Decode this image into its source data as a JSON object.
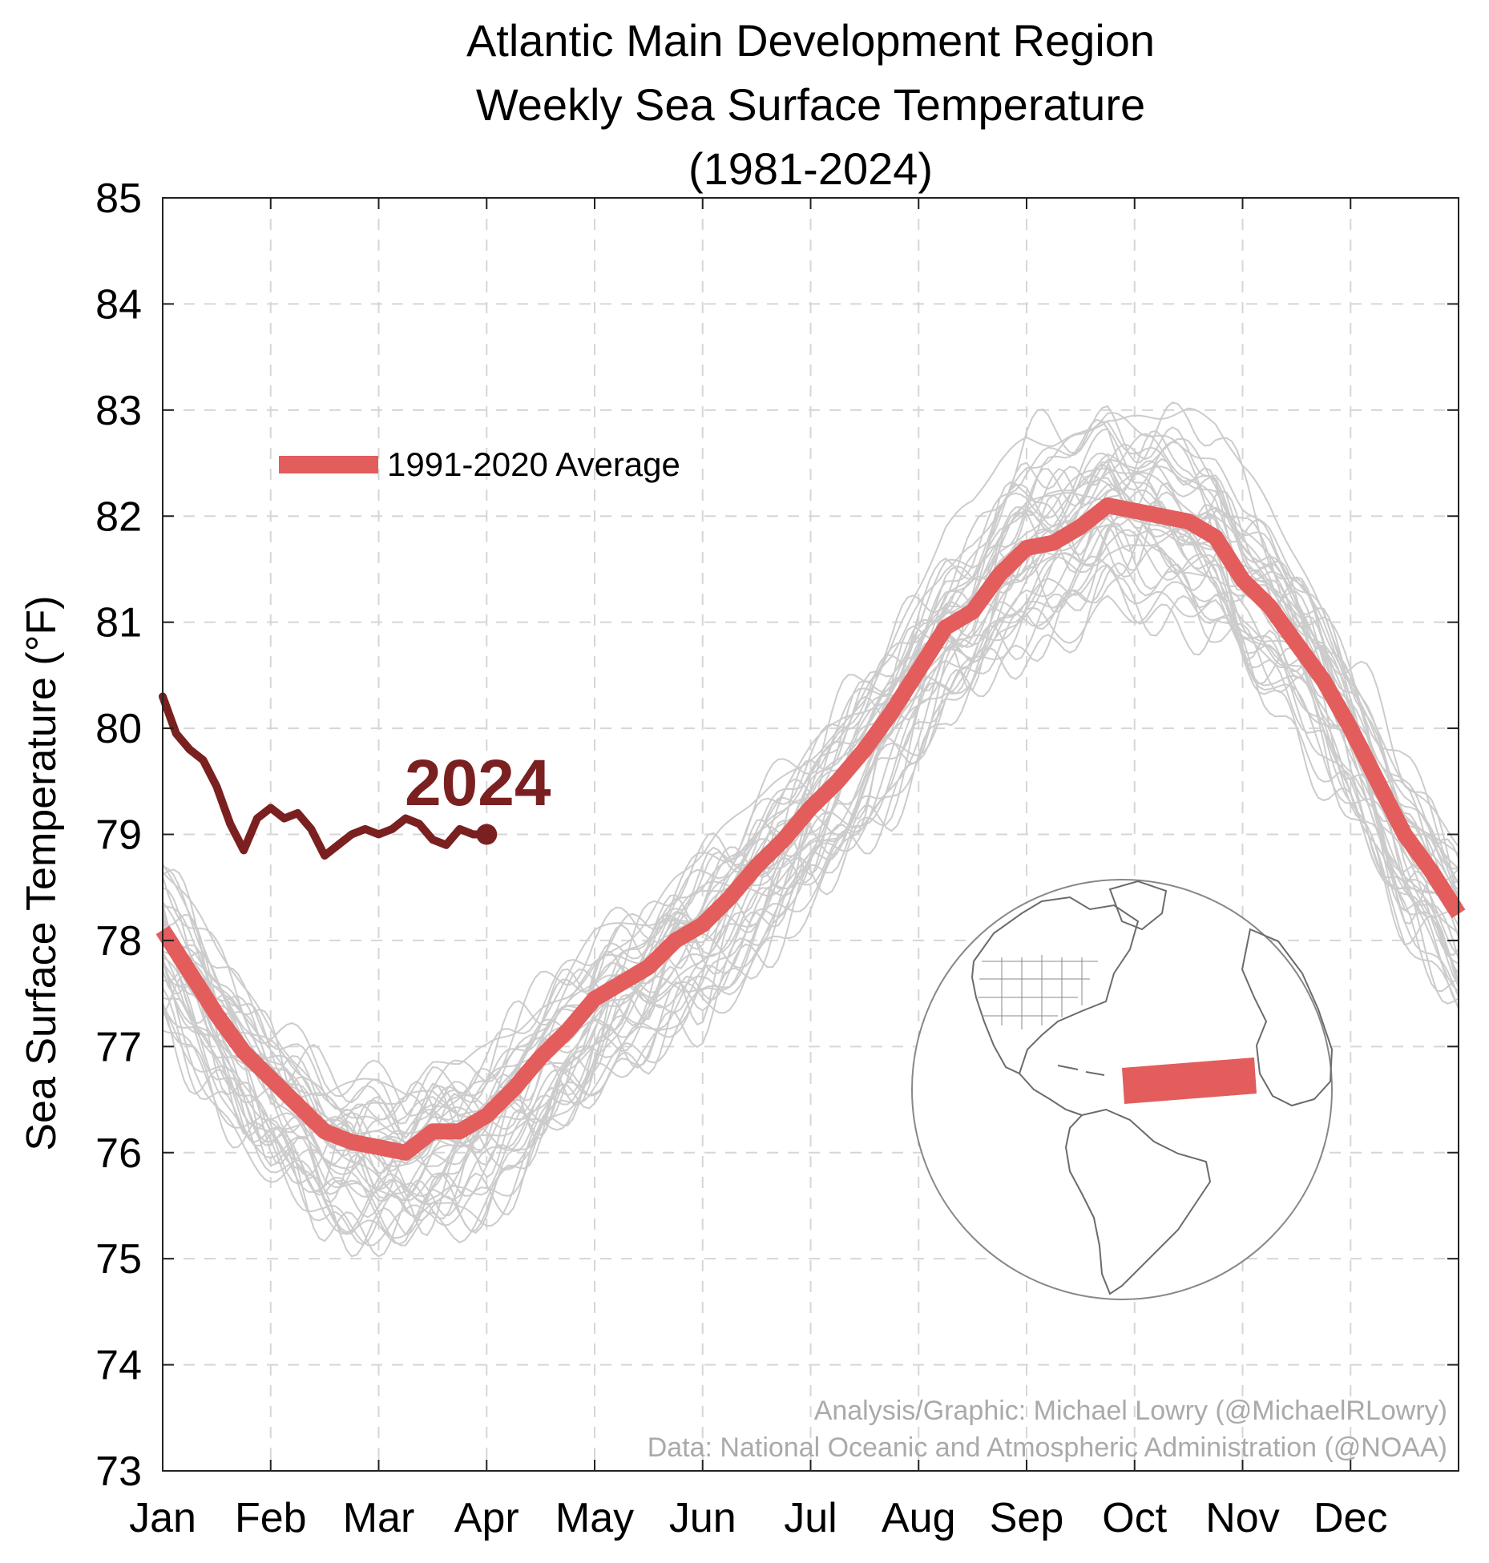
{
  "chart_data": {
    "type": "line",
    "title_lines": [
      "Atlantic Main Development Region",
      "Weekly Sea Surface Temperature",
      "(1981-2024)"
    ],
    "ylabel": "Sea Surface Temperature (°F)",
    "xlabel": "",
    "ylim": [
      73,
      85
    ],
    "yticks": [
      73,
      74,
      75,
      76,
      77,
      78,
      79,
      80,
      81,
      82,
      83,
      84,
      85
    ],
    "xlim": [
      0,
      12
    ],
    "month_labels": [
      "Jan",
      "Feb",
      "Mar",
      "Apr",
      "May",
      "Jun",
      "Jul",
      "Aug",
      "Sep",
      "Oct",
      "Nov",
      "Dec"
    ],
    "grid": true,
    "legend": {
      "position": "upper-left",
      "entries": [
        "1991-2020 Average"
      ]
    },
    "annotations": {
      "series_label_2024": "2024",
      "credit_1": "Analysis/Graphic: Michael Lowry (@MichaelRLowry)",
      "credit_2": "Data: National Oceanic and Atmospheric Administration (@NOAA)"
    },
    "series": [
      {
        "name": "1991-2020 Average",
        "color": "#e35d5d",
        "x": [
          0.0,
          0.25,
          0.5,
          0.75,
          1.0,
          1.25,
          1.5,
          1.75,
          2.0,
          2.25,
          2.5,
          2.75,
          3.0,
          3.25,
          3.5,
          3.75,
          4.0,
          4.25,
          4.5,
          4.75,
          5.0,
          5.25,
          5.5,
          5.75,
          6.0,
          6.25,
          6.5,
          6.75,
          7.0,
          7.25,
          7.5,
          7.75,
          8.0,
          8.25,
          8.5,
          8.75,
          9.0,
          9.25,
          9.5,
          9.75,
          10.0,
          10.25,
          10.5,
          10.75,
          11.0,
          11.25,
          11.5,
          11.75,
          12.0
        ],
        "values": [
          78.1,
          77.7,
          77.3,
          76.95,
          76.7,
          76.45,
          76.2,
          76.1,
          76.05,
          76.0,
          76.2,
          76.2,
          76.35,
          76.6,
          76.9,
          77.15,
          77.45,
          77.6,
          77.75,
          78.0,
          78.15,
          78.4,
          78.7,
          78.95,
          79.25,
          79.5,
          79.8,
          80.15,
          80.55,
          80.95,
          81.1,
          81.45,
          81.7,
          81.75,
          81.9,
          82.1,
          82.05,
          82.0,
          81.95,
          81.8,
          81.4,
          81.15,
          80.8,
          80.45,
          80.0,
          79.5,
          79.0,
          78.65,
          78.25
        ]
      },
      {
        "name": "2024",
        "color": "#7a2020",
        "x": [
          0.0,
          0.125,
          0.25,
          0.375,
          0.5,
          0.625,
          0.75,
          0.875,
          1.0,
          1.125,
          1.25,
          1.375,
          1.5,
          1.625,
          1.75,
          1.875,
          2.0,
          2.125,
          2.25,
          2.375,
          2.5,
          2.625,
          2.75,
          2.875,
          3.0
        ],
        "values": [
          80.3,
          79.95,
          79.8,
          79.7,
          79.45,
          79.1,
          78.85,
          79.15,
          79.25,
          79.15,
          79.2,
          79.05,
          78.8,
          78.9,
          79.0,
          79.05,
          79.0,
          79.05,
          79.15,
          79.1,
          78.95,
          78.9,
          79.05,
          79.0,
          79.0
        ]
      }
    ],
    "historical_years_note_color": "#cccccc",
    "region_highlight_color": "#e35d5d"
  }
}
